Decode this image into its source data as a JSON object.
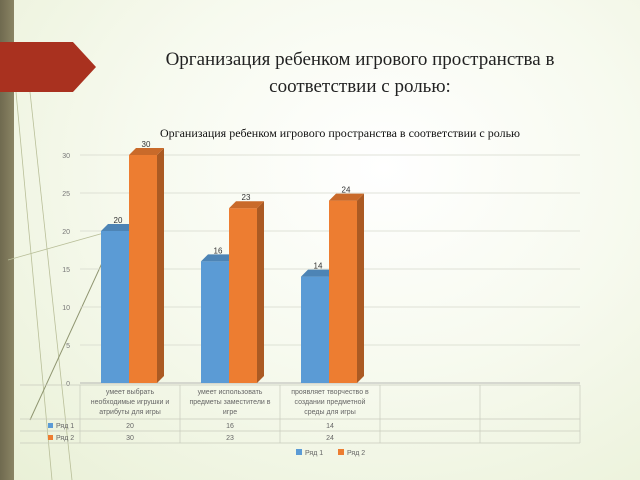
{
  "slide": {
    "title_line1": "Организация ребенком игрового пространства в",
    "title_line2": "соответствии с ролью:"
  },
  "colors": {
    "series1": "#5b9bd5",
    "series2": "#ed7d31",
    "accent": "#a9311f"
  },
  "chart_data": {
    "type": "bar",
    "title": "Организация ребенком игрового пространства в соответствии с ролью",
    "categories": [
      "умеет выбрать необходимые игрушки и атрибуты для игры",
      "умеет использовать предметы заместители в игре",
      "проявляет творчество в создании предметной среды для игры"
    ],
    "category_lines": [
      [
        "умеет выбрать",
        "необходимые игрушки и",
        "атрибуты для игры"
      ],
      [
        "умеет использовать",
        "предметы заместители в",
        "игре"
      ],
      [
        "проявляет творчество в",
        "создании предметной",
        "среды для игры"
      ]
    ],
    "series": [
      {
        "name": "Ряд 1",
        "values": [
          20,
          16,
          14
        ]
      },
      {
        "name": "Ряд 2",
        "values": [
          30,
          23,
          24
        ]
      }
    ],
    "table": [
      {
        "name": "Ряд 1",
        "values": [
          "20",
          "16",
          "14"
        ]
      },
      {
        "name": "Ряд 2",
        "values": [
          "30",
          "23",
          "24"
        ]
      }
    ],
    "ylim": [
      0,
      30
    ],
    "yticks": [
      0,
      5,
      10,
      15,
      20,
      25,
      30
    ],
    "grid": true,
    "legend": "bottom"
  }
}
